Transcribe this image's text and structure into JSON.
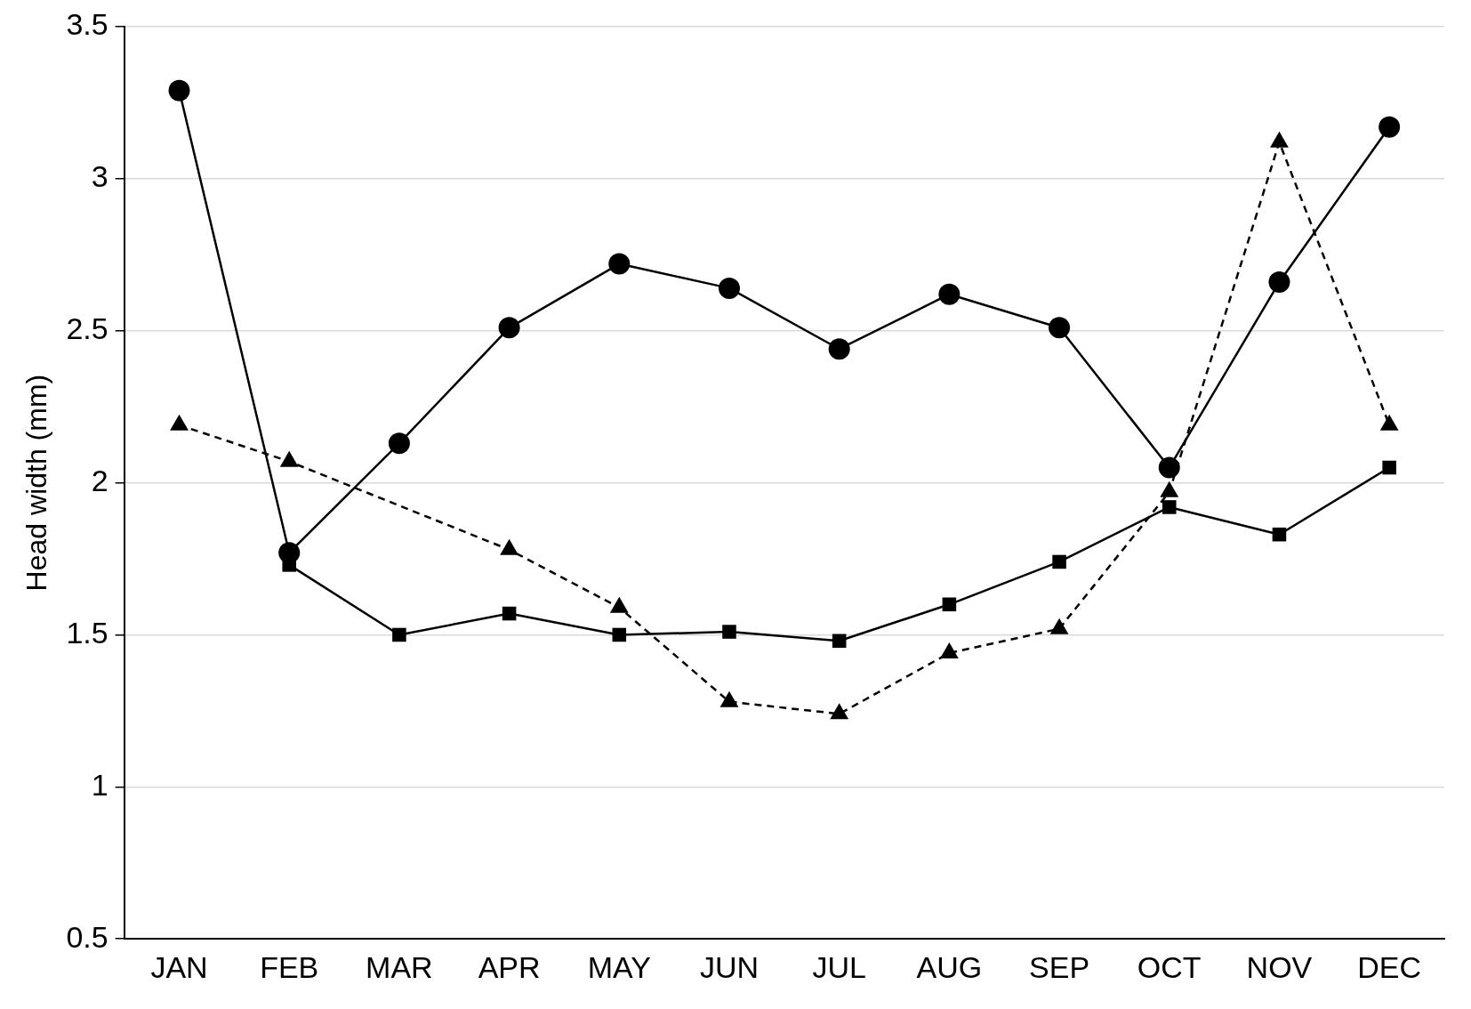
{
  "chart_data": {
    "type": "line",
    "ylabel": "Head width (mm)",
    "categories": [
      "JAN",
      "FEB",
      "MAR",
      "APR",
      "MAY",
      "JUN",
      "JUL",
      "AUG",
      "SEP",
      "OCT",
      "NOV",
      "DEC"
    ],
    "series": [
      {
        "color": "#000000",
        "marker": "circle",
        "line_style": "solid",
        "values": [
          3.29,
          1.77,
          2.13,
          2.51,
          2.72,
          2.64,
          2.44,
          2.62,
          2.51,
          2.05,
          2.66,
          3.17
        ]
      },
      {
        "color": "#000000",
        "marker": "square",
        "line_style": "solid",
        "values": [
          null,
          1.73,
          1.5,
          1.57,
          1.5,
          1.51,
          1.48,
          1.6,
          1.74,
          1.92,
          1.83,
          2.05
        ]
      },
      {
        "color": "#000000",
        "marker": "triangle",
        "line_style": "dashed",
        "values": [
          2.19,
          2.07,
          null,
          1.78,
          1.59,
          1.28,
          1.24,
          1.44,
          1.52,
          1.97,
          3.12,
          2.19
        ]
      }
    ],
    "ylim": [
      0.5,
      3.5
    ],
    "yticks": [
      0.5,
      1,
      1.5,
      2,
      2.5,
      3,
      3.5
    ],
    "grid": "y",
    "legend": false
  }
}
